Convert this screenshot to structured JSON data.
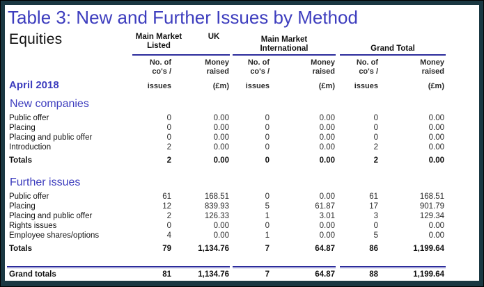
{
  "title": "Table 3: New and Further Issues by Method",
  "entity": "Equities",
  "period": "April 2018",
  "columns": {
    "group1": {
      "line1_left": "Main Market",
      "line1_right": "UK",
      "line2": "Listed"
    },
    "group2": {
      "line1": "Main Market",
      "line2": "International"
    },
    "group3": {
      "label": "Grand Total"
    },
    "sub": {
      "issues_l1": "No. of",
      "issues_l2": "co's /",
      "issues_l3": "issues",
      "money_l1": "Money",
      "money_l2": "raised",
      "money_l3": "(£m)"
    }
  },
  "sections": [
    {
      "heading": "New companies",
      "rows": [
        {
          "label": "Public offer",
          "values": [
            "0",
            "0.00",
            "0",
            "0.00",
            "0",
            "0.00"
          ]
        },
        {
          "label": "Placing",
          "values": [
            "0",
            "0.00",
            "0",
            "0.00",
            "0",
            "0.00"
          ]
        },
        {
          "label": "Placing and public offer",
          "values": [
            "0",
            "0.00",
            "0",
            "0.00",
            "0",
            "0.00"
          ]
        },
        {
          "label": "Introduction",
          "values": [
            "2",
            "0.00",
            "0",
            "0.00",
            "2",
            "0.00"
          ]
        }
      ],
      "totals": {
        "label": "Totals",
        "values": [
          "2",
          "0.00",
          "0",
          "0.00",
          "2",
          "0.00"
        ]
      }
    },
    {
      "heading": "Further issues",
      "rows": [
        {
          "label": "Public offer",
          "values": [
            "61",
            "168.51",
            "0",
            "0.00",
            "61",
            "168.51"
          ]
        },
        {
          "label": "Placing",
          "values": [
            "12",
            "839.93",
            "5",
            "61.87",
            "17",
            "901.79"
          ]
        },
        {
          "label": "Placing and public offer",
          "values": [
            "2",
            "126.33",
            "1",
            "3.01",
            "3",
            "129.34"
          ]
        },
        {
          "label": "Rights issues",
          "values": [
            "0",
            "0.00",
            "0",
            "0.00",
            "0",
            "0.00"
          ]
        },
        {
          "label": "Employee shares/options",
          "values": [
            "4",
            "0.00",
            "1",
            "0.00",
            "5",
            "0.00"
          ]
        }
      ],
      "totals": {
        "label": "Totals",
        "values": [
          "79",
          "1,134.76",
          "7",
          "64.87",
          "86",
          "1,199.64"
        ]
      }
    }
  ],
  "grand_totals": {
    "label": "Grand totals",
    "values": [
      "81",
      "1,134.76",
      "7",
      "64.87",
      "88",
      "1,199.64"
    ]
  },
  "colors": {
    "accent": "#3d3dbe",
    "rule": "#2c2c9c",
    "frame": "#1a3842"
  }
}
